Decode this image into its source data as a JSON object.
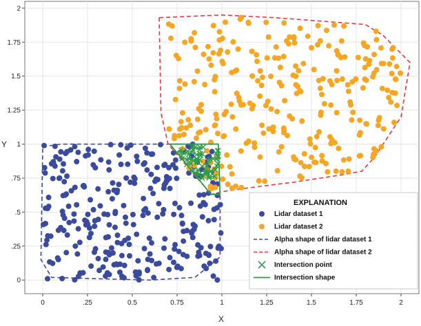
{
  "chart_data": {
    "type": "scatter",
    "xlabel": "X",
    "ylabel": "Y",
    "xlim": [
      -0.1,
      2.1
    ],
    "ylim": [
      -0.1,
      2.05
    ],
    "x_ticks": [
      0,
      0.25,
      0.5,
      0.75,
      1,
      1.25,
      1.5,
      1.75,
      2
    ],
    "x_tick_labels": [
      "0",
      ".25",
      "0.5",
      "0.75",
      "1",
      "1.25",
      "1.5",
      "1.75",
      "2"
    ],
    "y_ticks": [
      0,
      0.25,
      0.5,
      0.75,
      1,
      1.25,
      1.5,
      1.75,
      2
    ],
    "y_tick_labels": [
      "0",
      ".25",
      ".5",
      ".75",
      "1",
      "1.25",
      "1.5",
      "1.75",
      "2"
    ],
    "grid": true,
    "legend": {
      "title": "EXPLANATION",
      "placement": "bottom-right",
      "entries": [
        {
          "label": "Lidar dataset 1",
          "marker": "dot",
          "color": "#3a4a9c"
        },
        {
          "label": "Lidar dataset 2",
          "marker": "dot",
          "color": "#f5a623"
        },
        {
          "label": "Alpha shape of lidar dataset 1",
          "marker": "dashed-line",
          "color": "#3a4a9c"
        },
        {
          "label": "Alpha shape of lidar dataset 2",
          "marker": "dashed-line",
          "color": "#e8343a"
        },
        {
          "label": "Intersection point",
          "marker": "x",
          "color": "#2e9e48"
        },
        {
          "label": "Intersection shape",
          "marker": "line",
          "color": "#2e9e48"
        }
      ]
    },
    "series": [
      {
        "name": "Lidar dataset 1",
        "kind": "points",
        "color": "#3a4a9c",
        "generator": {
          "distribution": "uniform",
          "x_range": [
            0,
            1
          ],
          "y_range": [
            0,
            1
          ],
          "count": 300,
          "seed": 7
        }
      },
      {
        "name": "Lidar dataset 2",
        "kind": "points",
        "color": "#f5a623",
        "generator": {
          "distribution": "uniform",
          "x_range": [
            0.7,
            2.0
          ],
          "y_range": [
            0.6,
            1.95
          ],
          "count": 300,
          "seed": 13
        }
      },
      {
        "name": "Alpha shape of lidar dataset 1",
        "kind": "polygon",
        "color": "#3a4a9c",
        "style": "dashed",
        "points": [
          [
            0.0,
            0.98
          ],
          [
            0.1,
            1.0
          ],
          [
            0.98,
            1.0
          ],
          [
            0.99,
            0.62
          ],
          [
            0.99,
            0.17
          ],
          [
            0.85,
            0.02
          ],
          [
            0.6,
            0.0
          ],
          [
            0.3,
            0.01
          ],
          [
            0.05,
            0.02
          ],
          [
            -0.01,
            0.15
          ],
          [
            0.0,
            0.98
          ]
        ]
      },
      {
        "name": "Alpha shape of lidar dataset 2",
        "kind": "polygon",
        "color": "#e8343a",
        "style": "dashed",
        "points": [
          [
            0.65,
            1.93
          ],
          [
            1.0,
            1.95
          ],
          [
            1.3,
            1.93
          ],
          [
            1.6,
            1.9
          ],
          [
            1.8,
            1.88
          ],
          [
            1.9,
            1.8
          ],
          [
            2.05,
            1.6
          ],
          [
            2.0,
            1.2
          ],
          [
            1.9,
            1.0
          ],
          [
            1.85,
            0.9
          ],
          [
            1.78,
            0.8
          ],
          [
            1.65,
            0.77
          ],
          [
            1.4,
            0.72
          ],
          [
            1.1,
            0.67
          ],
          [
            1.0,
            0.65
          ],
          [
            0.94,
            0.63
          ],
          [
            0.7,
            1.0
          ],
          [
            0.66,
            1.23
          ],
          [
            0.65,
            1.93
          ]
        ]
      },
      {
        "name": "Intersection point",
        "kind": "points",
        "color": "#2e9e48",
        "marker": "x",
        "generator": {
          "distribution": "uniform",
          "x_range": [
            0.74,
            0.99
          ],
          "y_range": [
            0.72,
            0.99
          ],
          "count": 60,
          "seed": 21
        }
      },
      {
        "name": "Intersection shape",
        "kind": "polygon",
        "color": "#2e9e48",
        "style": "solid",
        "points": [
          [
            0.71,
            1.0
          ],
          [
            0.98,
            1.0
          ],
          [
            0.99,
            0.63
          ],
          [
            0.94,
            0.63
          ],
          [
            0.71,
            1.0
          ]
        ]
      }
    ]
  }
}
